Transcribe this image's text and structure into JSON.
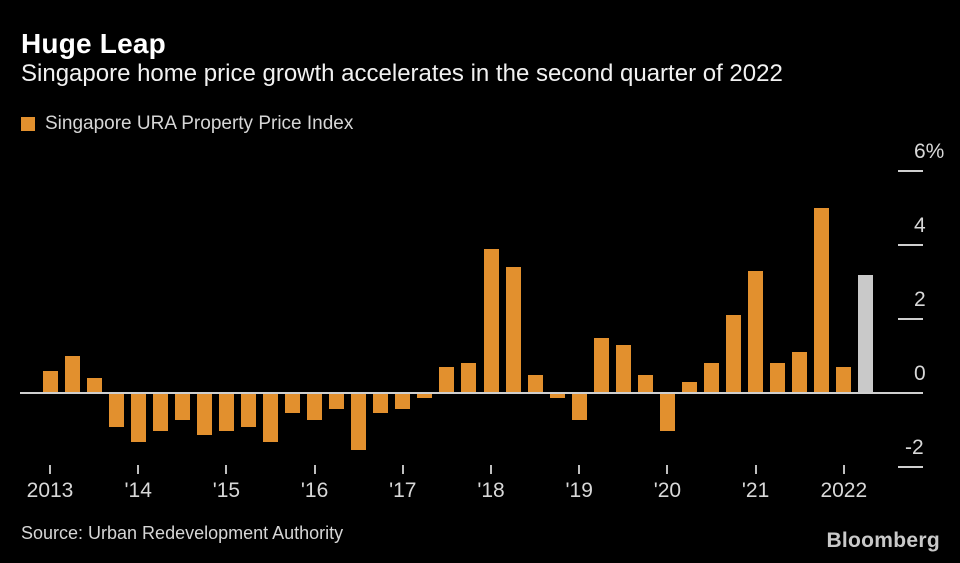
{
  "header": {
    "title": "Huge Leap",
    "subtitle": "Singapore home price growth accelerates in the second quarter of 2022"
  },
  "legend": {
    "label": "Singapore URA Property Price Index",
    "swatch_color": "#e2902e"
  },
  "chart_data": {
    "type": "bar",
    "title": "Huge Leap",
    "subtitle": "Singapore home price growth accelerates in the second quarter of 2022",
    "series_name": "Singapore URA Property Price Index",
    "unit": "percent, quarter-on-quarter change",
    "categories": [
      "2013 Q1",
      "2013 Q2",
      "2013 Q3",
      "2013 Q4",
      "2014 Q1",
      "2014 Q2",
      "2014 Q3",
      "2014 Q4",
      "2015 Q1",
      "2015 Q2",
      "2015 Q3",
      "2015 Q4",
      "2016 Q1",
      "2016 Q2",
      "2016 Q3",
      "2016 Q4",
      "2017 Q1",
      "2017 Q2",
      "2017 Q3",
      "2017 Q4",
      "2018 Q1",
      "2018 Q2",
      "2018 Q3",
      "2018 Q4",
      "2019 Q1",
      "2019 Q2",
      "2019 Q3",
      "2019 Q4",
      "2020 Q1",
      "2020 Q2",
      "2020 Q3",
      "2020 Q4",
      "2021 Q1",
      "2021 Q2",
      "2021 Q3",
      "2021 Q4",
      "2022 Q1",
      "2022 Q2"
    ],
    "values": [
      0.6,
      1.0,
      0.4,
      -0.9,
      -1.3,
      -1.0,
      -0.7,
      -1.1,
      -1.0,
      -0.9,
      -1.3,
      -0.5,
      -0.7,
      -0.4,
      -1.5,
      -0.5,
      -0.4,
      -0.1,
      0.7,
      0.8,
      3.9,
      3.4,
      0.5,
      -0.1,
      -0.7,
      1.5,
      1.3,
      0.5,
      -1.0,
      0.3,
      0.8,
      2.1,
      3.3,
      0.8,
      1.1,
      5.0,
      0.7,
      3.2
    ],
    "bar_color": "#e2902e",
    "latest_bar": {
      "index": 37,
      "color": "#c9c9c9"
    },
    "ylim": [
      -2.8,
      6.6
    ],
    "y_ticks": [
      {
        "label": "6%",
        "value": 6
      },
      {
        "label": "4",
        "value": 4
      },
      {
        "label": "2",
        "value": 2
      },
      {
        "label": "0",
        "value": 0
      },
      {
        "label": "-2",
        "value": -2
      }
    ],
    "x_ticks": [
      {
        "label": "2013",
        "index": 0
      },
      {
        "label": "'14",
        "index": 4
      },
      {
        "label": "'15",
        "index": 8
      },
      {
        "label": "'16",
        "index": 12
      },
      {
        "label": "'17",
        "index": 16
      },
      {
        "label": "'18",
        "index": 20
      },
      {
        "label": "'19",
        "index": 24
      },
      {
        "label": "'20",
        "index": 28
      },
      {
        "label": "'21",
        "index": 32
      },
      {
        "label": "2022",
        "index": 36
      }
    ],
    "grid": false,
    "legend_position": "top-left",
    "y_axis_position": "right"
  },
  "footer": {
    "source": "Source: Urban Redevelopment Authority",
    "brand": "Bloomberg"
  }
}
